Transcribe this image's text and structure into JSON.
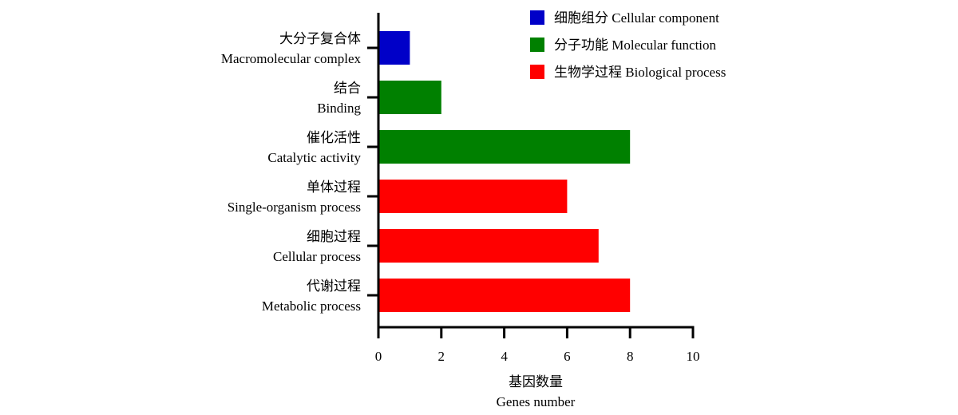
{
  "chart_data": {
    "type": "bar",
    "orientation": "horizontal",
    "categories": [
      {
        "zh": "大分子复合体",
        "en": "Macromolecular complex"
      },
      {
        "zh": "结合",
        "en": "Binding"
      },
      {
        "zh": "催化活性",
        "en": "Catalytic activity"
      },
      {
        "zh": "单体过程",
        "en": "Single-organism process"
      },
      {
        "zh": "细胞过程",
        "en": "Cellular process"
      },
      {
        "zh": "代谢过程",
        "en": "Metabolic process"
      }
    ],
    "values": [
      1,
      2,
      8,
      6,
      7,
      8
    ],
    "group": [
      0,
      1,
      1,
      2,
      2,
      2
    ],
    "groups": [
      {
        "name": "细胞组分 Cellular component",
        "color": "#0000c8"
      },
      {
        "name": "分子功能 Molecular function",
        "color": "#008000"
      },
      {
        "name": "生物学过程 Biological process",
        "color": "#ff0000"
      }
    ],
    "xlabel": {
      "zh": "基因数量",
      "en": "Genes number"
    },
    "xlim": [
      0,
      10
    ],
    "xticks": [
      "0",
      "2",
      "4",
      "6",
      "8",
      "10"
    ],
    "grid": false,
    "legend_position": "top-right"
  }
}
